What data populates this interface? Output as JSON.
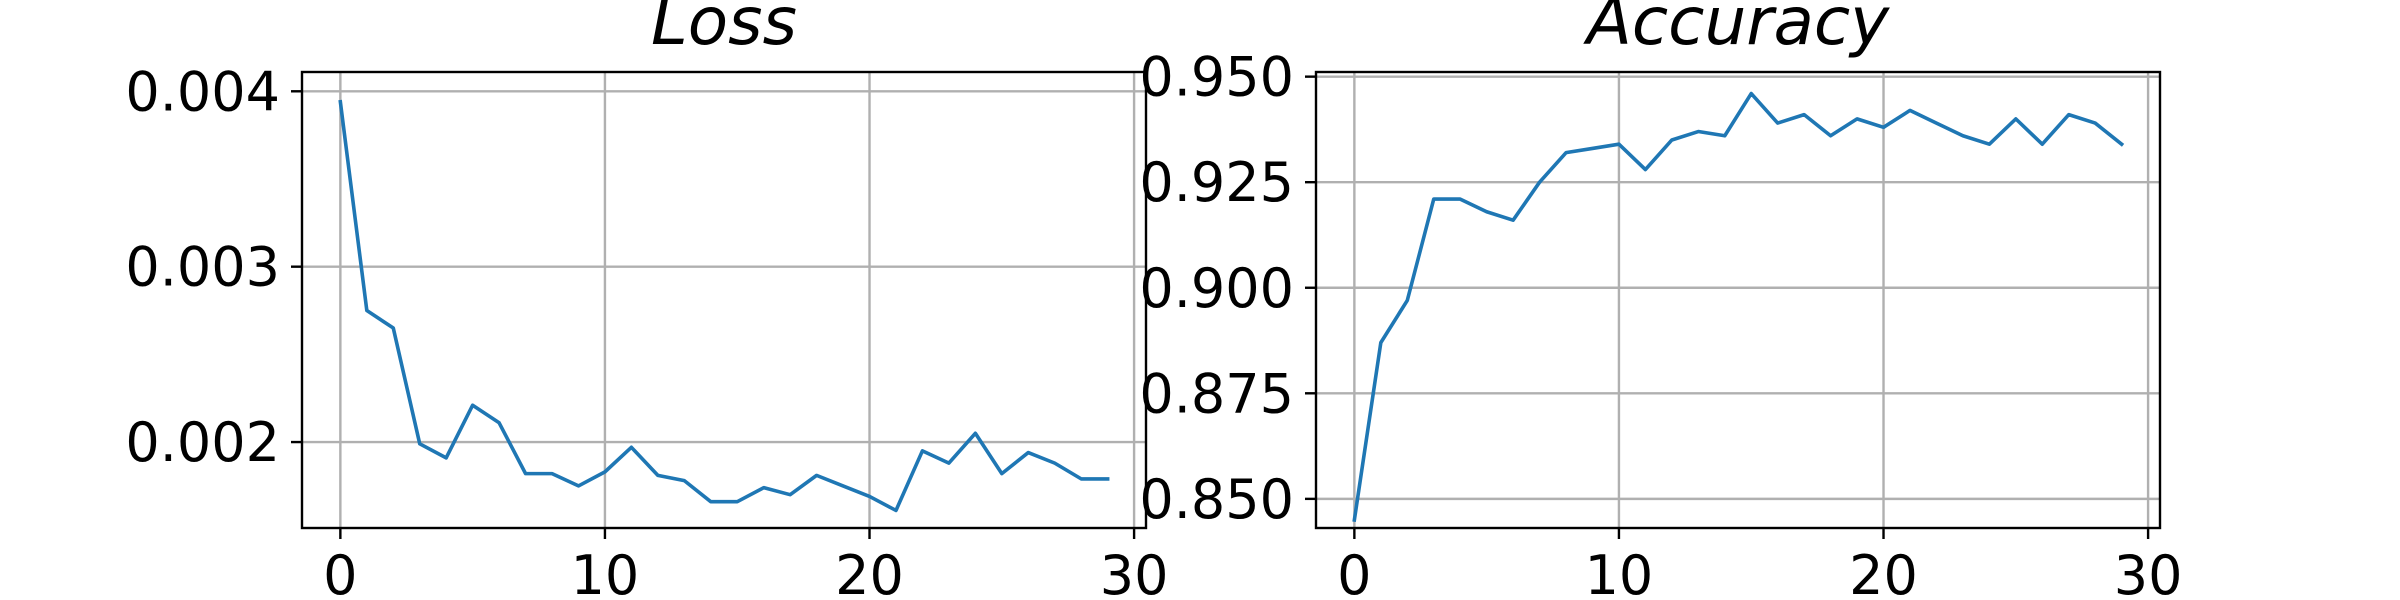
{
  "chart_data": [
    {
      "type": "line",
      "title": "Loss",
      "xlabel": "",
      "ylabel": "",
      "grid": true,
      "xlim": [
        -1.45,
        30.45
      ],
      "ylim": [
        0.00151,
        0.00411
      ],
      "xticks": [
        0,
        10,
        20,
        30
      ],
      "yticks": [
        0.002,
        0.003,
        0.004
      ],
      "xtick_labels": [
        "0",
        "10",
        "20",
        "30"
      ],
      "ytick_labels": [
        "0.002",
        "0.003",
        "0.004"
      ],
      "series": [
        {
          "color": "#1f77b4",
          "x": [
            0,
            1,
            2,
            3,
            4,
            5,
            6,
            7,
            8,
            9,
            10,
            11,
            12,
            13,
            14,
            15,
            16,
            17,
            18,
            19,
            20,
            21,
            22,
            23,
            24,
            25,
            26,
            27,
            28,
            29
          ],
          "y": [
            0.00394,
            0.00275,
            0.00265,
            0.00199,
            0.00191,
            0.00221,
            0.00211,
            0.00182,
            0.00182,
            0.00175,
            0.00183,
            0.00197,
            0.00181,
            0.00178,
            0.00166,
            0.00166,
            0.00174,
            0.0017,
            0.00181,
            0.00175,
            0.00169,
            0.00161,
            0.00195,
            0.00188,
            0.00205,
            0.00182,
            0.00194,
            0.00188,
            0.00179,
            0.00179
          ]
        }
      ]
    },
    {
      "type": "line",
      "title": "Accuracy",
      "xlabel": "",
      "ylabel": "",
      "grid": true,
      "xlim": [
        -1.45,
        30.45
      ],
      "ylim": [
        0.8431,
        0.9511
      ],
      "xticks": [
        0,
        10,
        20,
        30
      ],
      "yticks": [
        0.85,
        0.875,
        0.9,
        0.925,
        0.95
      ],
      "xtick_labels": [
        "0",
        "10",
        "20",
        "30"
      ],
      "ytick_labels": [
        "0.850",
        "0.875",
        "0.900",
        "0.925",
        "0.950"
      ],
      "series": [
        {
          "color": "#1f77b4",
          "x": [
            0,
            1,
            2,
            3,
            4,
            5,
            6,
            7,
            8,
            9,
            10,
            11,
            12,
            13,
            14,
            15,
            16,
            17,
            18,
            19,
            20,
            21,
            22,
            23,
            24,
            25,
            26,
            27,
            28,
            29
          ],
          "y": [
            0.845,
            0.887,
            0.897,
            0.921,
            0.921,
            0.918,
            0.916,
            0.925,
            0.932,
            0.933,
            0.934,
            0.928,
            0.935,
            0.937,
            0.936,
            0.946,
            0.939,
            0.941,
            0.936,
            0.94,
            0.938,
            0.942,
            0.939,
            0.936,
            0.934,
            0.94,
            0.934,
            0.941,
            0.939,
            0.934
          ]
        }
      ]
    }
  ]
}
